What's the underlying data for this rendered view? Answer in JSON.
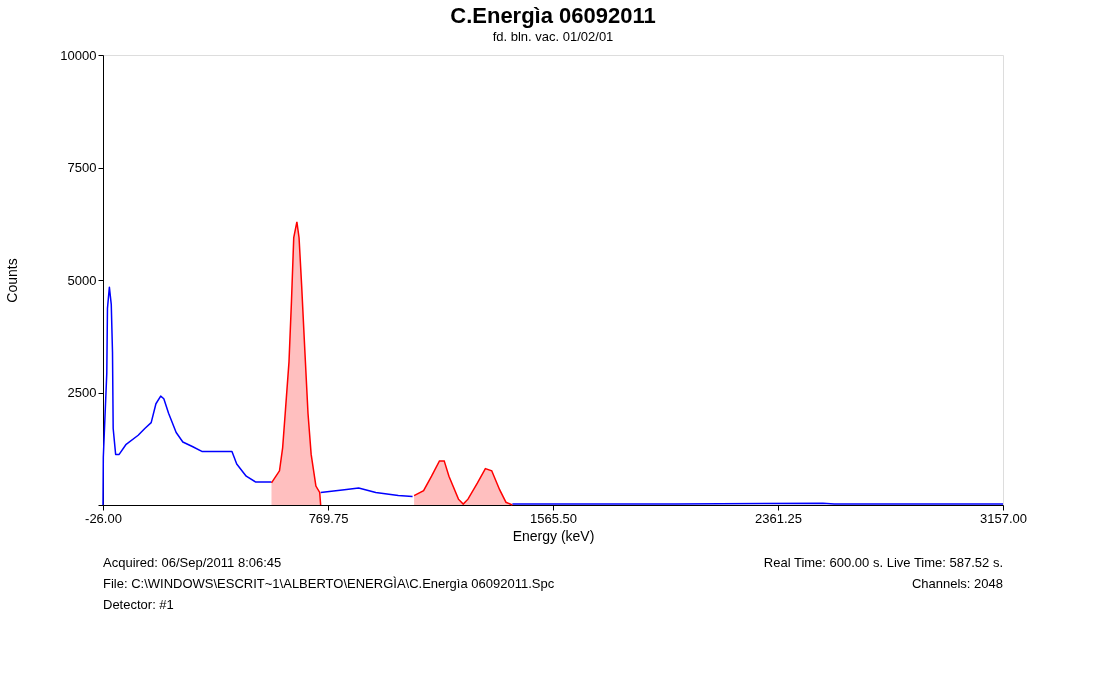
{
  "chart_data": {
    "type": "line",
    "title": "C.Energìa 06092011",
    "subtitle": "fd. bln. vac. 01/02/01",
    "xlabel": "Energy (keV)",
    "ylabel": "Counts",
    "xlim": [
      -26,
      3157
    ],
    "xticks": [
      {
        "value": -26,
        "label": "-26.00"
      },
      {
        "value": 769.75,
        "label": "769.75"
      },
      {
        "value": 1565.5,
        "label": "1565.50"
      },
      {
        "value": 2361.25,
        "label": "2361.25"
      },
      {
        "value": 3157,
        "label": "3157.00"
      }
    ],
    "ylim": [
      0,
      10000
    ],
    "yticks": [
      {
        "value": 0,
        "label": null
      },
      2500,
      5000,
      7500,
      10000
    ],
    "grid": false,
    "series": [
      {
        "color": "#0000ff",
        "x": [
          -26,
          -24.9,
          -12.6,
          -10.2,
          -3.5,
          3.2,
          7.6,
          10.0,
          18.7,
          31.1,
          54.7,
          98.4,
          121.9,
          144.4,
          161.2,
          178.0,
          189.1,
          205.9,
          232.8,
          256.3,
          289.9,
          323.6,
          367.3,
          430.1,
          446.9,
          480.5,
          514.2,
          569.9,
          650,
          743.8,
          827.8,
          878.2,
          938.7,
          1018.3,
          1068.8,
          1250,
          1421.8,
          2000,
          2520,
          2560,
          3157
        ],
        "values": [
          0,
          1060,
          2930,
          4370,
          4840,
          4460,
          3400,
          1700,
          1125,
          1125,
          1340,
          1550,
          1700,
          1830,
          2250,
          2420,
          2360,
          2040,
          1610,
          1400,
          1300,
          1190,
          1190,
          1190,
          910,
          640,
          510,
          510,
          null,
          280,
          340,
          380,
          280,
          210,
          190,
          null,
          20,
          20,
          40,
          20,
          20
        ]
      },
      {
        "type": "area",
        "color": "#ff0000",
        "x": [
          569.9,
          585.7,
          598.2,
          609.3,
          619.4,
          631.8,
          640.5,
          648.6,
          659.7,
          667.4,
          676.5,
          687.6,
          699.0,
          710.2,
          727.0,
          740.4,
          743.8
        ],
        "values": [
          490,
          640,
          760,
          1270,
          2120,
          3180,
          4520,
          5940,
          6290,
          5940,
          4880,
          3460,
          2040,
          1125,
          420,
          280,
          0
        ]
      },
      {
        "type": "area",
        "color": "#ff0000",
        "x": [
          1074.2,
          1107.8,
          1136.0,
          1163.9,
          1180.7,
          1197.5,
          1231.1,
          1248.0,
          1264.8,
          1298.4,
          1326.3,
          1348.8,
          1376.7,
          1399.3,
          1421.8
        ],
        "values": [
          210,
          320,
          640,
          980,
          980,
          640,
          130,
          20,
          130,
          490,
          810,
          760,
          340,
          60,
          0
        ]
      }
    ],
    "annotations": [
      "Acquired:  06/Sep/2011  8:06:45",
      "Real Time: 600.00 s.  Live Time: 587.52 s.",
      "File:  C:\\WINDOWS\\ESCRIT~1\\ALBERTO\\ENERGÌA\\C.Energìa 06092011.Spc",
      "Channels:  2048",
      "Detector:  #1"
    ]
  }
}
